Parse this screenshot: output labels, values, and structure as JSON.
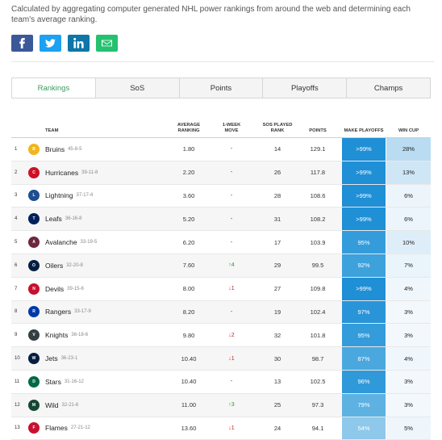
{
  "description": "Calculated by aggregating computer generated NHL power rankings from around the web and determining each team's average ranking.",
  "share": [
    "facebook-icon",
    "twitter-icon",
    "linkedin-icon",
    "email-icon"
  ],
  "tabs": [
    "Rankings",
    "SoS",
    "Points",
    "Playoffs",
    "Champs"
  ],
  "headers": {
    "team": "TEAM",
    "avg": "AVERAGE RANKING",
    "move": "1-WEEK MOVE",
    "sos": "SOS PLAYED RANK",
    "pts": "POINTS",
    "play": "MAKE PLAYOFFS",
    "cup": "WIN CUP"
  },
  "rows": [
    {
      "rank": "1",
      "team": "Bruins",
      "record": "45-8-5",
      "avg": "1.80",
      "move": "-",
      "dir": "",
      "sos": "14",
      "pts": "129.1",
      "play": ">99%",
      "cup": "28%",
      "logo": "#f2b51c",
      "lt": "B"
    },
    {
      "rank": "2",
      "team": "Hurricanes",
      "record": "39-11-8",
      "avg": "2.20",
      "move": "-",
      "dir": "",
      "sos": "26",
      "pts": "117.8",
      "play": ">99%",
      "cup": "13%",
      "logo": "#ce1126",
      "lt": "C"
    },
    {
      "rank": "3",
      "team": "Lightning",
      "record": "37-17-4",
      "avg": "3.60",
      "move": "-",
      "dir": "",
      "sos": "28",
      "pts": "108.6",
      "play": ">99%",
      "cup": "6%",
      "logo": "#1d4f91",
      "lt": "L"
    },
    {
      "rank": "4",
      "team": "Leafs",
      "record": "36-16-8",
      "avg": "5.20",
      "move": "-",
      "dir": "",
      "sos": "31",
      "pts": "108.2",
      "play": ">99%",
      "cup": "6%",
      "logo": "#00205b",
      "lt": "T"
    },
    {
      "rank": "5",
      "team": "Avalanche",
      "record": "33-19-5",
      "avg": "6.20",
      "move": "-",
      "dir": "",
      "sos": "17",
      "pts": "103.9",
      "play": "95%",
      "cup": "10%",
      "logo": "#6f263d",
      "lt": "A"
    },
    {
      "rank": "6",
      "team": "Oilers",
      "record": "32-20-8",
      "avg": "7.60",
      "move": "4",
      "dir": "up",
      "sos": "29",
      "pts": "99.5",
      "play": "92%",
      "cup": "7%",
      "logo": "#041e42",
      "lt": "O"
    },
    {
      "rank": "7",
      "team": "Devils",
      "record": "39-15-6",
      "avg": "8.00",
      "move": "1",
      "dir": "down",
      "sos": "27",
      "pts": "109.8",
      "play": ">99%",
      "cup": "4%",
      "logo": "#c8102e",
      "lt": "N"
    },
    {
      "rank": "8",
      "team": "Rangers",
      "record": "33-17-9",
      "avg": "8.20",
      "move": "-",
      "dir": "",
      "sos": "19",
      "pts": "102.4",
      "play": "97%",
      "cup": "3%",
      "logo": "#0038a8",
      "lt": "R"
    },
    {
      "rank": "9",
      "team": "Knights",
      "record": "36-18-6",
      "avg": "9.80",
      "move": "2",
      "dir": "down",
      "sos": "32",
      "pts": "101.8",
      "play": "95%",
      "cup": "3%",
      "logo": "#333f42",
      "lt": "V"
    },
    {
      "rank": "10",
      "team": "Jets",
      "record": "36-23-1",
      "avg": "10.40",
      "move": "1",
      "dir": "down",
      "sos": "30",
      "pts": "98.7",
      "play": "87%",
      "cup": "4%",
      "logo": "#041e42",
      "lt": "W"
    },
    {
      "rank": "11",
      "team": "Stars",
      "record": "31-16-12",
      "avg": "10.40",
      "move": "-",
      "dir": "",
      "sos": "13",
      "pts": "102.5",
      "play": "96%",
      "cup": "3%",
      "logo": "#006847",
      "lt": "D"
    },
    {
      "rank": "12",
      "team": "Wild",
      "record": "32-21-6",
      "avg": "11.00",
      "move": "3",
      "dir": "up",
      "sos": "25",
      "pts": "97.3",
      "play": "79%",
      "cup": "3%",
      "logo": "#154734",
      "lt": "M"
    },
    {
      "rank": "13",
      "team": "Flames",
      "record": "27-21-12",
      "avg": "13.60",
      "move": "1",
      "dir": "down",
      "sos": "24",
      "pts": "94.1",
      "play": "54%",
      "cup": "5%",
      "logo": "#c8102e",
      "lt": "F"
    }
  ],
  "shade": {
    ">99%": "#1f8fd6",
    "97%": "#2a94d8",
    "96%": "#3099d9",
    "95%": "#349cda",
    "92%": "#3da1dc",
    "87%": "#4aa8de",
    "79%": "#5db2e2",
    "54%": "#8ec8ea",
    "28%": "#b9dcf2",
    "13%": "#cfe6f6",
    "10%": "#deeef9",
    "7%": "#eaf4fb",
    "6%": "#ecf5fb",
    "5%": "#eef6fc",
    "4%": "#f0f7fc",
    "3%": "#f3f8fd"
  }
}
